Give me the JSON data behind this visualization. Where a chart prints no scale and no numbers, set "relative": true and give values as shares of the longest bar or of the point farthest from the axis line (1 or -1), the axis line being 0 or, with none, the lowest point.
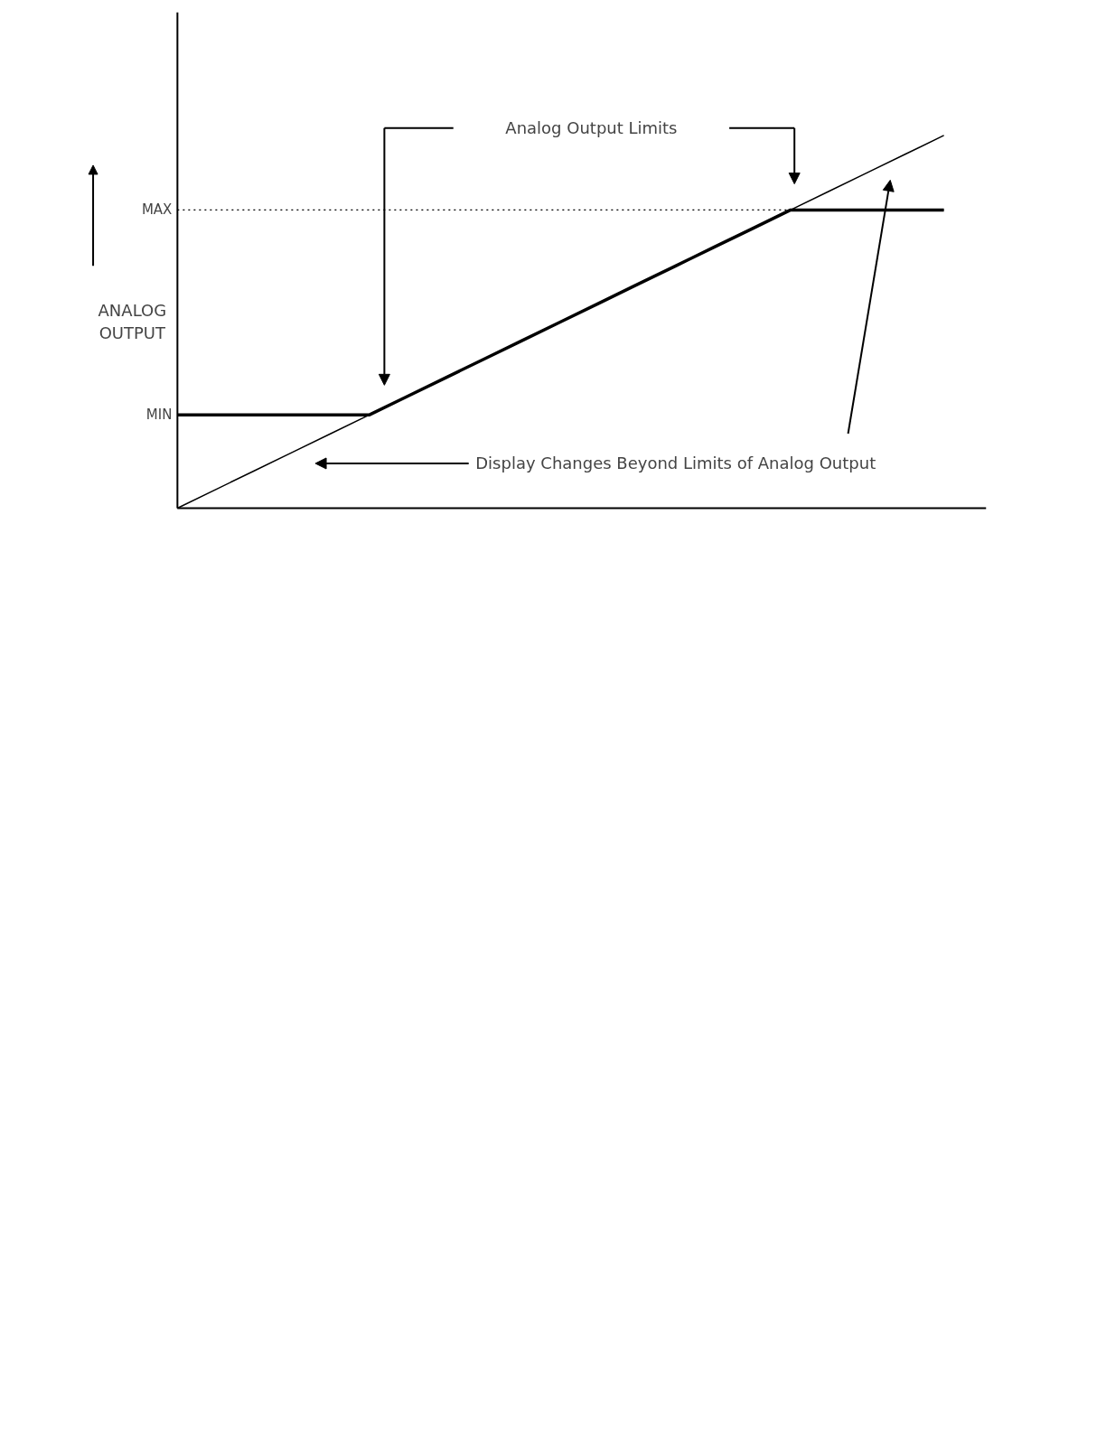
{
  "chart_data": {
    "type": "line",
    "relative": true,
    "categories": [
      null,
      null,
      null,
      null,
      null,
      null,
      null,
      null,
      null,
      null,
      null,
      null,
      null,
      null,
      null,
      null,
      null,
      null,
      null,
      null,
      null
    ],
    "ylabel": "ANALOG OUTPUT",
    "series": [
      {
        "color": "#000000",
        "values": [
          0,
          0.05,
          0.1,
          0.15,
          0.2,
          0.25,
          0.3,
          0.35,
          0.4,
          0.45,
          0.5,
          0.55,
          0.6,
          0.65,
          0.7,
          0.75,
          0.8,
          0.85,
          0.9,
          0.95,
          1
        ]
      },
      {
        "color": "#000000",
        "values": [
          0.25,
          0.25,
          0.25,
          0.25,
          0.25,
          0.25,
          0.3,
          0.35,
          0.4,
          0.45,
          0.5,
          0.55,
          0.6,
          0.65,
          0.7,
          0.75,
          0.8,
          0.8,
          0.8,
          0.8,
          0.8
        ]
      }
    ],
    "ref_lines": [
      {
        "axis": "y",
        "value": 0.8,
        "label": "MAX",
        "line_style": "dotted"
      }
    ],
    "annotations": [
      "Analog Output Limits",
      "Display Changes Beyond Limits of Analog Output",
      "MIN"
    ]
  }
}
